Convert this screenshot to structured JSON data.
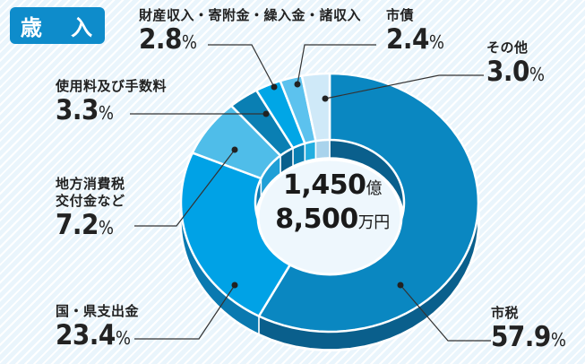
{
  "header": {
    "title": "歳 入"
  },
  "total": {
    "line1_number": "1,450",
    "line1_unit": "億",
    "line2_number": "8,500",
    "line2_unit": "万円"
  },
  "segments": [
    {
      "name": "市税",
      "value": "57.9",
      "unit": "%",
      "color": "#0a87c1",
      "side_color": "#0a5f8c"
    },
    {
      "name": "国・県支出金",
      "value": "23.4",
      "unit": "%",
      "color": "#00a2e6",
      "side_color": "#0a79b0"
    },
    {
      "name": "地方消費税交付金など",
      "name_line1": "地方消費税",
      "name_line2": "交付金など",
      "value": "7.2",
      "unit": "%",
      "color": "#4fbde9",
      "side_color": "#1f9fd6"
    },
    {
      "name": "使用料及び手数料",
      "value": "3.3",
      "unit": "%",
      "color": "#0a7fb3",
      "side_color": "#0a5f8c"
    },
    {
      "name": "財産収入・寄附金・繰入金・諸収入",
      "value": "2.8",
      "unit": "%",
      "color": "#00a6e6",
      "side_color": "#0a7fb3"
    },
    {
      "name": "市債",
      "value": "2.4",
      "unit": "%",
      "color": "#5cc2ee",
      "side_color": "#22aee0"
    },
    {
      "name": "その他",
      "value": "3.0",
      "unit": "%",
      "color": "#cfe9f8",
      "side_color": "#a9d3ec"
    }
  ],
  "chart_data": {
    "type": "pie",
    "title": "歳入",
    "center_label": "1,450億8,500万円",
    "categories": [
      "市税",
      "国・県支出金",
      "地方消費税交付金など",
      "使用料及び手数料",
      "財産収入・寄附金・繰入金・諸収入",
      "市債",
      "その他"
    ],
    "values": [
      57.9,
      23.4,
      7.2,
      3.3,
      2.8,
      2.4,
      3.0
    ],
    "unit": "%",
    "style": "3D donut",
    "start_angle": "12 o'clock, clockwise"
  }
}
